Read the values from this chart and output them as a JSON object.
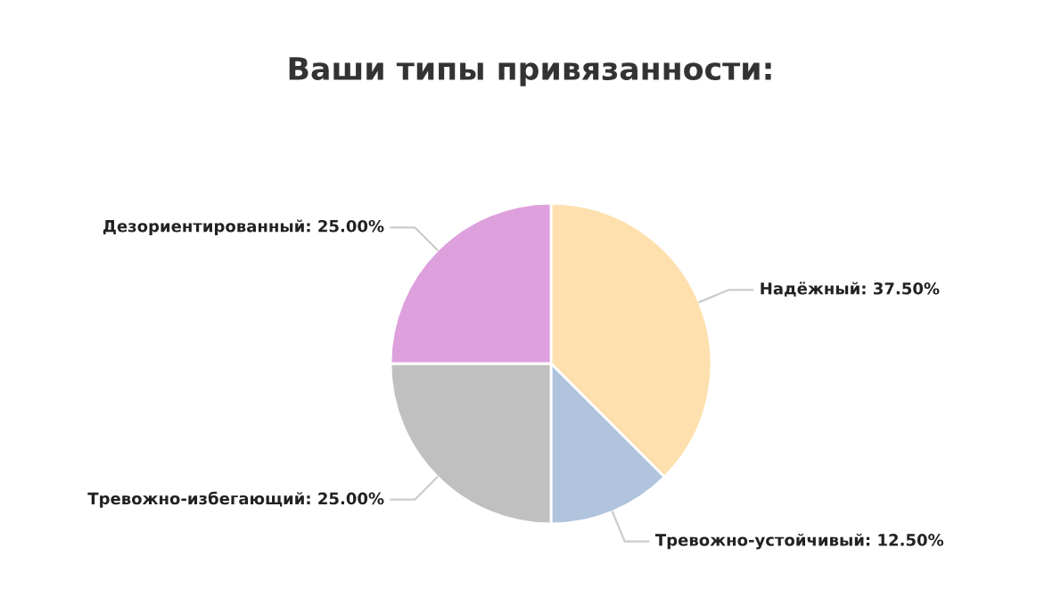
{
  "chart_data": {
    "type": "pie",
    "title": "Ваши типы привязанности:",
    "categories": [
      "Надёжный",
      "Тревожно-устойчивый",
      "Тревожно-избегающий",
      "Дезориентированный"
    ],
    "values": [
      37.5,
      12.5,
      25,
      25
    ],
    "value_labels": [
      "37.50%",
      "12.50%",
      "25.00%",
      "25.00%"
    ],
    "colors": [
      "#fde0ae",
      "#b0c4de",
      "#c0c0c0",
      "#dda0dd"
    ],
    "legend": false
  }
}
